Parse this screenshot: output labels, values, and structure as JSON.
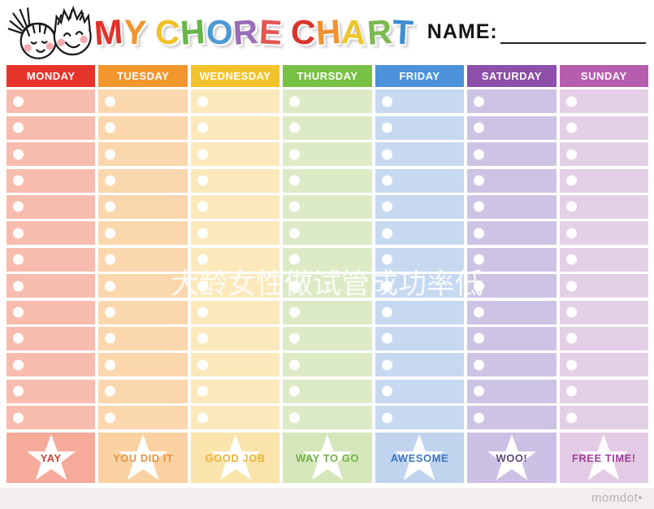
{
  "page": {
    "background": "#ffffff",
    "bottom_strip_color": "#f2eef0"
  },
  "header": {
    "illustration": "two-kids-faces-doodle",
    "title": "MY CHORE CHART",
    "title_letters": [
      {
        "ch": "M",
        "color": "#e2312a"
      },
      {
        "ch": "Y",
        "color": "#f0952c"
      },
      {
        "ch": " "
      },
      {
        "ch": "C",
        "color": "#f2c12a"
      },
      {
        "ch": "H",
        "color": "#69b54a"
      },
      {
        "ch": "O",
        "color": "#4c9ad4"
      },
      {
        "ch": "R",
        "color": "#996cb4"
      },
      {
        "ch": "E",
        "color": "#e35752"
      },
      {
        "ch": " "
      },
      {
        "ch": "C",
        "color": "#d8362d"
      },
      {
        "ch": "H",
        "color": "#ef9331"
      },
      {
        "ch": "A",
        "color": "#edc52e"
      },
      {
        "ch": "R",
        "color": "#7cb952"
      },
      {
        "ch": "T",
        "color": "#3f8ed1"
      }
    ],
    "name_label": "NAME:"
  },
  "chart": {
    "rows_per_column": 13,
    "checkbox": "white-circle",
    "header_text_color": "#ffffff",
    "columns": [
      {
        "day": "MONDAY",
        "header_color": "#e7342b",
        "cell_color": "#f8bcae",
        "footer_color": "#f6aa99",
        "footer_label": "YAY",
        "footer_text_color": "#ce4237"
      },
      {
        "day": "TUESDAY",
        "header_color": "#f2962e",
        "cell_color": "#fbd7ad",
        "footer_color": "#fad2a2",
        "footer_label": "YOU DID IT",
        "footer_text_color": "#e6923f"
      },
      {
        "day": "WEDNESDAY",
        "header_color": "#f2c32c",
        "cell_color": "#fce9bb",
        "footer_color": "#fae4ab",
        "footer_label": "GOOD JOB",
        "footer_text_color": "#e9b438"
      },
      {
        "day": "THURSDAY",
        "header_color": "#77c144",
        "cell_color": "#dcebc5",
        "footer_color": "#d5e6bb",
        "footer_label": "WAY TO GO",
        "footer_text_color": "#72b24b"
      },
      {
        "day": "FRIDAY",
        "header_color": "#4b92da",
        "cell_color": "#c6d9f0",
        "footer_color": "#c0d4ee",
        "footer_label": "AWESOME",
        "footer_text_color": "#3a77c3"
      },
      {
        "day": "SATURDAY",
        "header_color": "#8d4fa9",
        "cell_color": "#cdc3e4",
        "footer_color": "#ccc0e5",
        "footer_label": "WOO!",
        "footer_text_color": "#5b4a77"
      },
      {
        "day": "SUNDAY",
        "header_color": "#b75dae",
        "cell_color": "#e4d0e6",
        "footer_color": "#e3cbe5",
        "footer_label": "FREE TIME!",
        "footer_text_color": "#a2419f"
      }
    ]
  },
  "watermark": {
    "text": "大龄女性做试管成功率低",
    "color": "#ffffff",
    "opacity": 0.85
  },
  "brand": {
    "text": "momdot",
    "dot": "•",
    "color": "#b7b0b6"
  }
}
